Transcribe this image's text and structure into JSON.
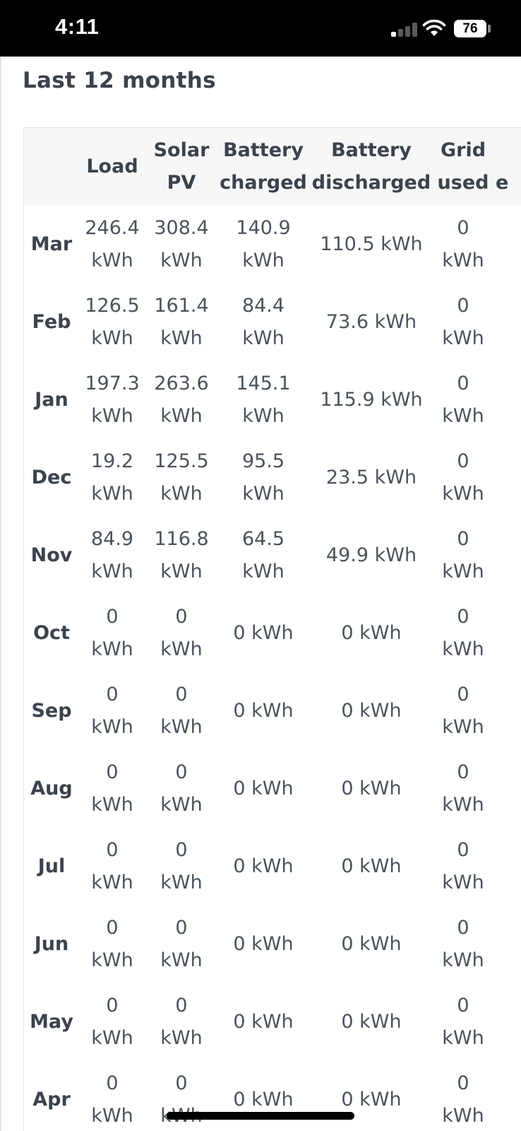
{
  "status_bar": {
    "time": "4:11",
    "battery": "76",
    "icons": [
      "signal-icon",
      "wifi-icon",
      "battery-icon"
    ]
  },
  "title": "Last 12 months",
  "table": {
    "headers": {
      "load": "Load",
      "solar": [
        "Solar",
        "PV"
      ],
      "battery_charged": [
        "Battery",
        "charged"
      ],
      "battery_discharged": [
        "Battery",
        "discharged"
      ],
      "grid_used": [
        "Grid",
        "used"
      ],
      "exported_partial": "e"
    },
    "rows": [
      {
        "month": "Mar",
        "load": [
          "246.4",
          "kWh"
        ],
        "solar": [
          "308.4",
          "kWh"
        ],
        "battery_charged": [
          "140.9",
          "kWh"
        ],
        "battery_discharged": "110.5 kWh",
        "grid_used": [
          "0",
          "kWh"
        ]
      },
      {
        "month": "Feb",
        "load": [
          "126.5",
          "kWh"
        ],
        "solar": [
          "161.4",
          "kWh"
        ],
        "battery_charged": [
          "84.4",
          "kWh"
        ],
        "battery_discharged": "73.6 kWh",
        "grid_used": [
          "0",
          "kWh"
        ]
      },
      {
        "month": "Jan",
        "load": [
          "197.3",
          "kWh"
        ],
        "solar": [
          "263.6",
          "kWh"
        ],
        "battery_charged": [
          "145.1",
          "kWh"
        ],
        "battery_discharged": "115.9 kWh",
        "grid_used": [
          "0",
          "kWh"
        ]
      },
      {
        "month": "Dec",
        "load": [
          "19.2",
          "kWh"
        ],
        "solar": [
          "125.5",
          "kWh"
        ],
        "battery_charged": [
          "95.5",
          "kWh"
        ],
        "battery_discharged": "23.5 kWh",
        "grid_used": [
          "0",
          "kWh"
        ]
      },
      {
        "month": "Nov",
        "load": [
          "84.9",
          "kWh"
        ],
        "solar": [
          "116.8",
          "kWh"
        ],
        "battery_charged": [
          "64.5",
          "kWh"
        ],
        "battery_discharged": "49.9 kWh",
        "grid_used": [
          "0",
          "kWh"
        ]
      },
      {
        "month": "Oct",
        "load": [
          "0",
          "kWh"
        ],
        "solar": [
          "0",
          "kWh"
        ],
        "battery_charged": [
          "0 kWh"
        ],
        "battery_discharged": "0 kWh",
        "grid_used": [
          "0",
          "kWh"
        ]
      },
      {
        "month": "Sep",
        "load": [
          "0",
          "kWh"
        ],
        "solar": [
          "0",
          "kWh"
        ],
        "battery_charged": [
          "0 kWh"
        ],
        "battery_discharged": "0 kWh",
        "grid_used": [
          "0",
          "kWh"
        ]
      },
      {
        "month": "Aug",
        "load": [
          "0",
          "kWh"
        ],
        "solar": [
          "0",
          "kWh"
        ],
        "battery_charged": [
          "0 kWh"
        ],
        "battery_discharged": "0 kWh",
        "grid_used": [
          "0",
          "kWh"
        ]
      },
      {
        "month": "Jul",
        "load": [
          "0",
          "kWh"
        ],
        "solar": [
          "0",
          "kWh"
        ],
        "battery_charged": [
          "0 kWh"
        ],
        "battery_discharged": "0 kWh",
        "grid_used": [
          "0",
          "kWh"
        ]
      },
      {
        "month": "Jun",
        "load": [
          "0",
          "kWh"
        ],
        "solar": [
          "0",
          "kWh"
        ],
        "battery_charged": [
          "0 kWh"
        ],
        "battery_discharged": "0 kWh",
        "grid_used": [
          "0",
          "kWh"
        ]
      },
      {
        "month": "May",
        "load": [
          "0",
          "kWh"
        ],
        "solar": [
          "0",
          "kWh"
        ],
        "battery_charged": [
          "0 kWh"
        ],
        "battery_discharged": "0 kWh",
        "grid_used": [
          "0",
          "kWh"
        ]
      },
      {
        "month": "Apr",
        "load": [
          "0",
          "kWh"
        ],
        "solar": [
          "0",
          "kWh"
        ],
        "battery_charged": [
          "0 kWh"
        ],
        "battery_discharged": "0 kWh",
        "grid_used": [
          "0",
          "kWh"
        ]
      }
    ]
  }
}
